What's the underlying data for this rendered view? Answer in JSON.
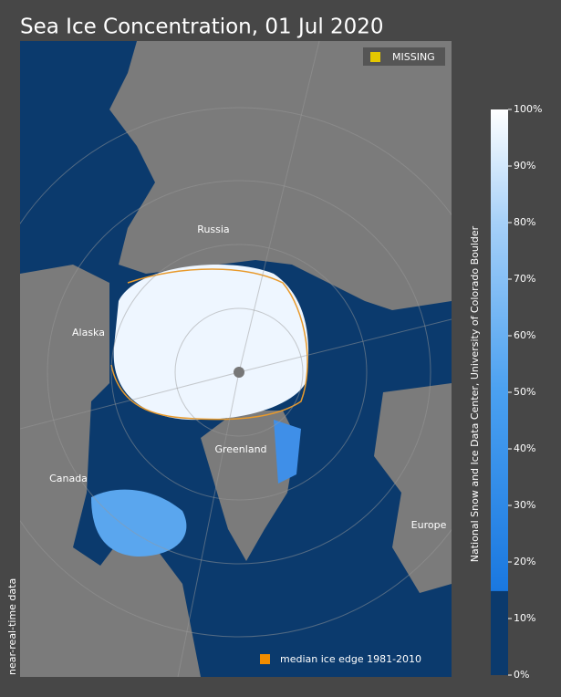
{
  "title": "Sea Ice Concentration, 01 Jul 2020",
  "map": {
    "labels": [
      "Russia",
      "Alaska",
      "Canada",
      "Greenland",
      "Europe"
    ]
  },
  "legend": {
    "missing": "MISSING",
    "median_edge": "median ice edge 1981-2010"
  },
  "status": "near-real-time data",
  "credit": "National Snow and Ice Data Center, University of Colorado Boulder",
  "colorbar": {
    "ticks": [
      {
        "value": 0,
        "label": "0%"
      },
      {
        "value": 10,
        "label": "10%"
      },
      {
        "value": 20,
        "label": "20%"
      },
      {
        "value": 30,
        "label": "30%"
      },
      {
        "value": 40,
        "label": "40%"
      },
      {
        "value": 50,
        "label": "50%"
      },
      {
        "value": 60,
        "label": "60%"
      },
      {
        "value": 70,
        "label": "70%"
      },
      {
        "value": 80,
        "label": "80%"
      },
      {
        "value": 90,
        "label": "90%"
      },
      {
        "value": 100,
        "label": "100%"
      }
    ]
  }
}
